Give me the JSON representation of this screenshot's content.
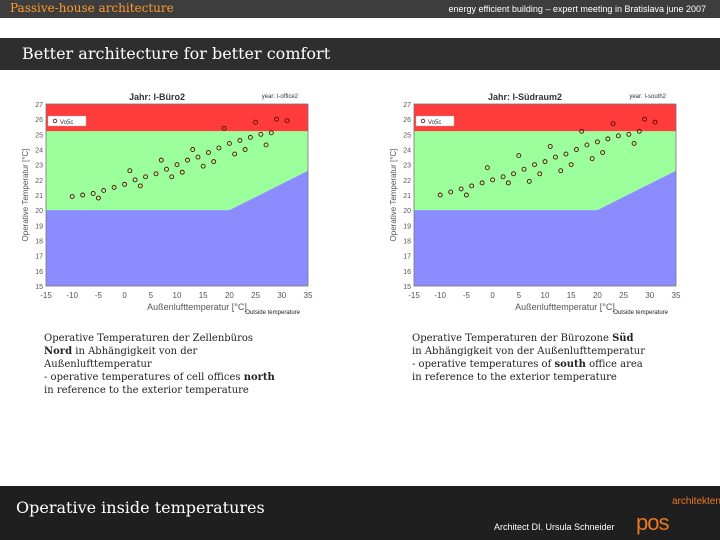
{
  "header": {
    "section_title": "Passive-house architecture",
    "event": "energy efficient building – expert meeting in Bratislava june 2007"
  },
  "slide": {
    "title": "Better architecture for better comfort"
  },
  "colors": {
    "zone_high": "#ff3b3b",
    "zone_comfort": "#9bff9b",
    "zone_low": "#8a8cff",
    "points": "#5a0a0a",
    "accent": "#ff9a2e",
    "logo": "#e87722"
  },
  "chart_data": [
    {
      "type": "scatter",
      "title": "Jahr: I-Büro2",
      "tag": "year: I-office2",
      "xlabel": "Außenlufttemperatur [°C]",
      "ylabel": "Operative Temperatur [°C]",
      "outside_label": "Outside temperature",
      "legend": "Vo5c",
      "xlim": [
        -15,
        35
      ],
      "ylim": [
        15,
        27
      ],
      "xticks": [
        -15,
        -10,
        -5,
        0,
        5,
        10,
        15,
        20,
        25,
        30,
        35
      ],
      "yticks": [
        15,
        16,
        17,
        18,
        19,
        20,
        21,
        22,
        23,
        24,
        25,
        26,
        27
      ],
      "ytick_labels": [
        "15",
        "16",
        "17",
        "18",
        "19",
        "20",
        "21",
        "22",
        "23",
        "24",
        "25",
        "26",
        "27"
      ],
      "comfort_zone": {
        "upper": [
          [
            -15,
            25.2
          ],
          [
            35,
            25.2
          ]
        ],
        "lower": [
          [
            -15,
            20.0
          ],
          [
            20,
            20.0
          ],
          [
            35,
            22.6
          ]
        ]
      },
      "points": [
        [
          -10,
          20.9
        ],
        [
          -8,
          21.0
        ],
        [
          -6,
          21.1
        ],
        [
          -4,
          21.3
        ],
        [
          -2,
          21.5
        ],
        [
          0,
          21.7
        ],
        [
          2,
          22.0
        ],
        [
          4,
          22.2
        ],
        [
          6,
          22.4
        ],
        [
          8,
          22.7
        ],
        [
          10,
          23.0
        ],
        [
          12,
          23.3
        ],
        [
          14,
          23.5
        ],
        [
          16,
          23.8
        ],
        [
          18,
          24.1
        ],
        [
          20,
          24.4
        ],
        [
          22,
          24.6
        ],
        [
          24,
          24.8
        ],
        [
          26,
          25.0
        ],
        [
          28,
          25.1
        ],
        [
          -5,
          20.8
        ],
        [
          3,
          21.6
        ],
        [
          9,
          22.2
        ],
        [
          15,
          22.9
        ],
        [
          21,
          23.7
        ],
        [
          27,
          24.3
        ],
        [
          7,
          23.3
        ],
        [
          13,
          24.0
        ],
        [
          19,
          25.4
        ],
        [
          25,
          25.8
        ],
        [
          29,
          26.0
        ],
        [
          31,
          25.9
        ],
        [
          1,
          22.6
        ],
        [
          11,
          22.5
        ],
        [
          17,
          23.2
        ],
        [
          23,
          24.0
        ]
      ]
    },
    {
      "type": "scatter",
      "title": "Jahr: I-Südraum2",
      "tag": "year: I-south2",
      "xlabel": "Außenlufttemperatur [°C]",
      "ylabel": "Operative Temperatur [°C]",
      "outside_label": "Outside temperature",
      "legend": "Vo5c",
      "xlim": [
        -15,
        35
      ],
      "ylim": [
        15,
        27
      ],
      "xticks": [
        -15,
        -10,
        -5,
        0,
        5,
        10,
        15,
        20,
        25,
        30,
        35
      ],
      "yticks": [
        15,
        16,
        17,
        18,
        19,
        20,
        21,
        22,
        23,
        24,
        25,
        26,
        27
      ],
      "ytick_labels": [
        "15",
        "16",
        "17",
        "18",
        "19",
        "20",
        "21",
        "22",
        "23",
        "24",
        "25",
        "26",
        "27"
      ],
      "comfort_zone": {
        "upper": [
          [
            -15,
            25.2
          ],
          [
            35,
            25.2
          ]
        ],
        "lower": [
          [
            -15,
            20.0
          ],
          [
            20,
            20.0
          ],
          [
            35,
            22.6
          ]
        ]
      },
      "points": [
        [
          -10,
          21.0
        ],
        [
          -8,
          21.2
        ],
        [
          -6,
          21.4
        ],
        [
          -4,
          21.6
        ],
        [
          -2,
          21.8
        ],
        [
          0,
          22.0
        ],
        [
          2,
          22.2
        ],
        [
          4,
          22.4
        ],
        [
          6,
          22.7
        ],
        [
          8,
          23.0
        ],
        [
          10,
          23.2
        ],
        [
          12,
          23.5
        ],
        [
          14,
          23.7
        ],
        [
          16,
          24.0
        ],
        [
          18,
          24.3
        ],
        [
          20,
          24.5
        ],
        [
          22,
          24.7
        ],
        [
          24,
          24.9
        ],
        [
          26,
          25.0
        ],
        [
          28,
          25.2
        ],
        [
          -5,
          21.0
        ],
        [
          3,
          21.8
        ],
        [
          9,
          22.4
        ],
        [
          15,
          23.0
        ],
        [
          21,
          23.8
        ],
        [
          27,
          24.4
        ],
        [
          5,
          23.6
        ],
        [
          11,
          24.2
        ],
        [
          17,
          25.2
        ],
        [
          23,
          25.7
        ],
        [
          29,
          26.0
        ],
        [
          31,
          25.8
        ],
        [
          -1,
          22.8
        ],
        [
          7,
          21.9
        ],
        [
          13,
          22.6
        ],
        [
          19,
          23.4
        ]
      ]
    }
  ],
  "captions": {
    "left": {
      "line1": "Operative Temperaturen der Zellenbüros",
      "line2_bold": "Nord",
      "line2_rest": " in Abhängigkeit von der",
      "line3": "Außenlufttemperatur",
      "line4_pre": "- operative temperatures of cell offices ",
      "line4_bold": "north",
      "line5": "in reference to the exterior temperature"
    },
    "right": {
      "line1_pre": "Operative Temperaturen der Bürozone ",
      "line1_bold": "Süd",
      "line2": "in Abhängigkeit von der Außenlufttemperatur",
      "line3_pre": "- operative temperatures of ",
      "line3_bold": "south",
      "line3_rest": " office area",
      "line4": "in reference to the exterior temperature"
    }
  },
  "footer": {
    "title": "Operative inside temperatures",
    "author": "Architect DI. Ursula Schneider",
    "logo_text": "pos",
    "logo_sub": "architekten"
  }
}
